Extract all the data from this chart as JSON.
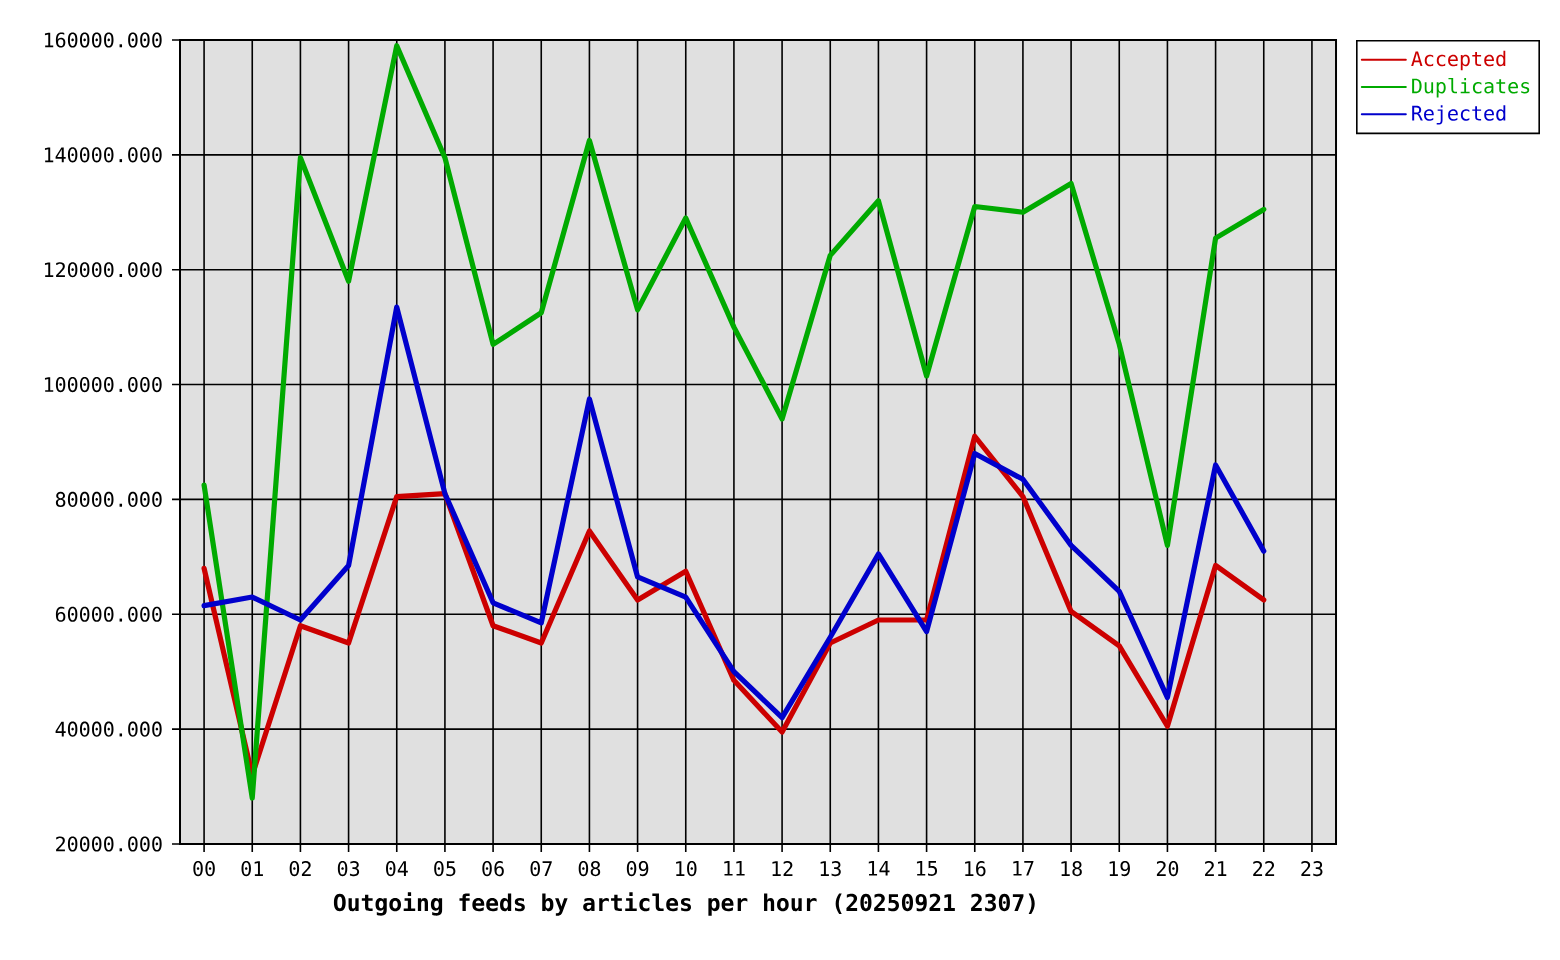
{
  "chart_data": {
    "type": "line",
    "xlabel": "Outgoing feeds by articles per hour (20250921 2307)",
    "categories": [
      "00",
      "01",
      "02",
      "03",
      "04",
      "05",
      "06",
      "07",
      "08",
      "09",
      "10",
      "11",
      "12",
      "13",
      "14",
      "15",
      "16",
      "17",
      "18",
      "19",
      "20",
      "21",
      "22",
      "23"
    ],
    "series": [
      {
        "name": "Accepted",
        "color": "#cc0000",
        "values": [
          68000,
          32000,
          58000,
          55000,
          80500,
          81000,
          58000,
          55000,
          74500,
          62500,
          67500,
          48500,
          39500,
          55000,
          59000,
          59000,
          91000,
          80500,
          60500,
          54500,
          40500,
          68500,
          62500,
          null
        ]
      },
      {
        "name": "Duplicates",
        "color": "#00aa00",
        "values": [
          82500,
          28000,
          139500,
          118000,
          159000,
          139500,
          107000,
          112500,
          142500,
          113000,
          129000,
          110000,
          94000,
          122500,
          132000,
          101500,
          131000,
          130000,
          135000,
          107000,
          72000,
          125500,
          130500,
          null
        ]
      },
      {
        "name": "Rejected",
        "color": "#0000cc",
        "values": [
          61500,
          63000,
          59000,
          68500,
          113500,
          81000,
          62000,
          58500,
          97500,
          66500,
          63000,
          50000,
          42000,
          56000,
          70500,
          57000,
          88000,
          83500,
          72000,
          64000,
          45500,
          86000,
          71000,
          null
        ]
      }
    ],
    "ylim": [
      20000,
      160000
    ],
    "yticks": [
      {
        "value": 20000,
        "label": "20000.000"
      },
      {
        "value": 40000,
        "label": "40000.000"
      },
      {
        "value": 60000,
        "label": "60000.000"
      },
      {
        "value": 80000,
        "label": "80000.000"
      },
      {
        "value": 100000,
        "label": "100000.000"
      },
      {
        "value": 120000,
        "label": "120000.000"
      },
      {
        "value": 140000,
        "label": "140000.000"
      },
      {
        "value": 160000,
        "label": "160000.000"
      }
    ],
    "grid": true,
    "legend": "top right"
  }
}
